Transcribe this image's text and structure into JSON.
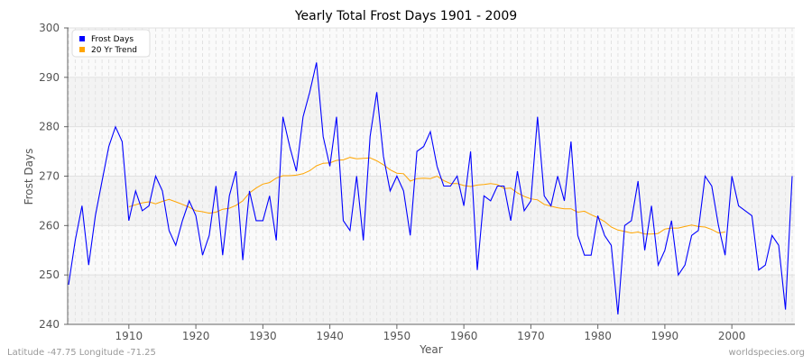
{
  "chart_data": {
    "type": "line",
    "title": "Yearly Total Frost Days 1901 - 2009",
    "xlabel": "Year",
    "ylabel": "Frost Days",
    "xlim": [
      1901,
      2009
    ],
    "ylim": [
      240,
      300
    ],
    "yticks": [
      240,
      250,
      260,
      270,
      280,
      290,
      300
    ],
    "xticks": [
      1910,
      1920,
      1930,
      1940,
      1950,
      1960,
      1970,
      1980,
      1990,
      2000
    ],
    "grid": true,
    "legend_position": "top-left",
    "series": [
      {
        "name": "Frost Days",
        "color": "#0000ff",
        "x_start": 1901,
        "values": [
          248,
          257,
          264,
          252,
          262,
          269,
          276,
          280,
          277,
          261,
          267,
          263,
          264,
          270,
          267,
          259,
          256,
          261,
          265,
          262,
          254,
          258,
          268,
          254,
          266,
          271,
          253,
          267,
          261,
          261,
          266,
          257,
          282,
          276,
          271,
          282,
          287,
          293,
          278,
          272,
          282,
          261,
          259,
          270,
          257,
          278,
          287,
          274,
          267,
          270,
          267,
          258,
          275,
          276,
          279,
          272,
          268,
          268,
          270,
          264,
          275,
          251,
          266,
          265,
          268,
          268,
          261,
          271,
          263,
          265,
          282,
          266,
          264,
          270,
          265,
          277,
          258,
          254,
          254,
          262,
          258,
          256,
          242,
          260,
          261,
          269,
          255,
          264,
          252,
          255,
          261,
          250,
          252,
          258,
          259,
          270,
          268,
          260,
          254,
          270,
          264,
          263,
          262,
          251,
          252,
          258,
          256,
          243,
          270
        ]
      },
      {
        "name": "20 Yr Trend",
        "color": "#ffa500",
        "x_start": 1910,
        "values": [
          263.8,
          264.2,
          264.6,
          264.8,
          264.4,
          264.9,
          265.3,
          264.8,
          264.3,
          263.7,
          263.0,
          262.8,
          262.5,
          262.7,
          263.3,
          263.5,
          264.1,
          265.0,
          266.6,
          267.6,
          268.4,
          268.7,
          269.6,
          270.1,
          270.1,
          270.2,
          270.5,
          271.1,
          272.1,
          272.6,
          272.7,
          273.2,
          273.3,
          273.8,
          273.5,
          273.6,
          273.7,
          273.1,
          272.3,
          271.3,
          270.6,
          270.5,
          269.0,
          269.5,
          269.6,
          269.5,
          270.0,
          269.1,
          268.5,
          268.5,
          268.1,
          267.9,
          268.2,
          268.3,
          268.5,
          268.3,
          267.5,
          267.6,
          266.6,
          265.9,
          265.4,
          265.2,
          264.3,
          263.9,
          263.6,
          263.4,
          263.4,
          262.7,
          262.9,
          262.2,
          261.6,
          260.8,
          259.7,
          259.1,
          258.8,
          258.5,
          258.7,
          258.3,
          258.3,
          258.4,
          259.3,
          259.5,
          259.5,
          259.8,
          260.1,
          259.8,
          259.7,
          259.2,
          258.5,
          258.7
        ]
      }
    ]
  },
  "footer": {
    "left": "Latitude -47.75 Longitude -71.25",
    "right": "worldspecies.org"
  }
}
